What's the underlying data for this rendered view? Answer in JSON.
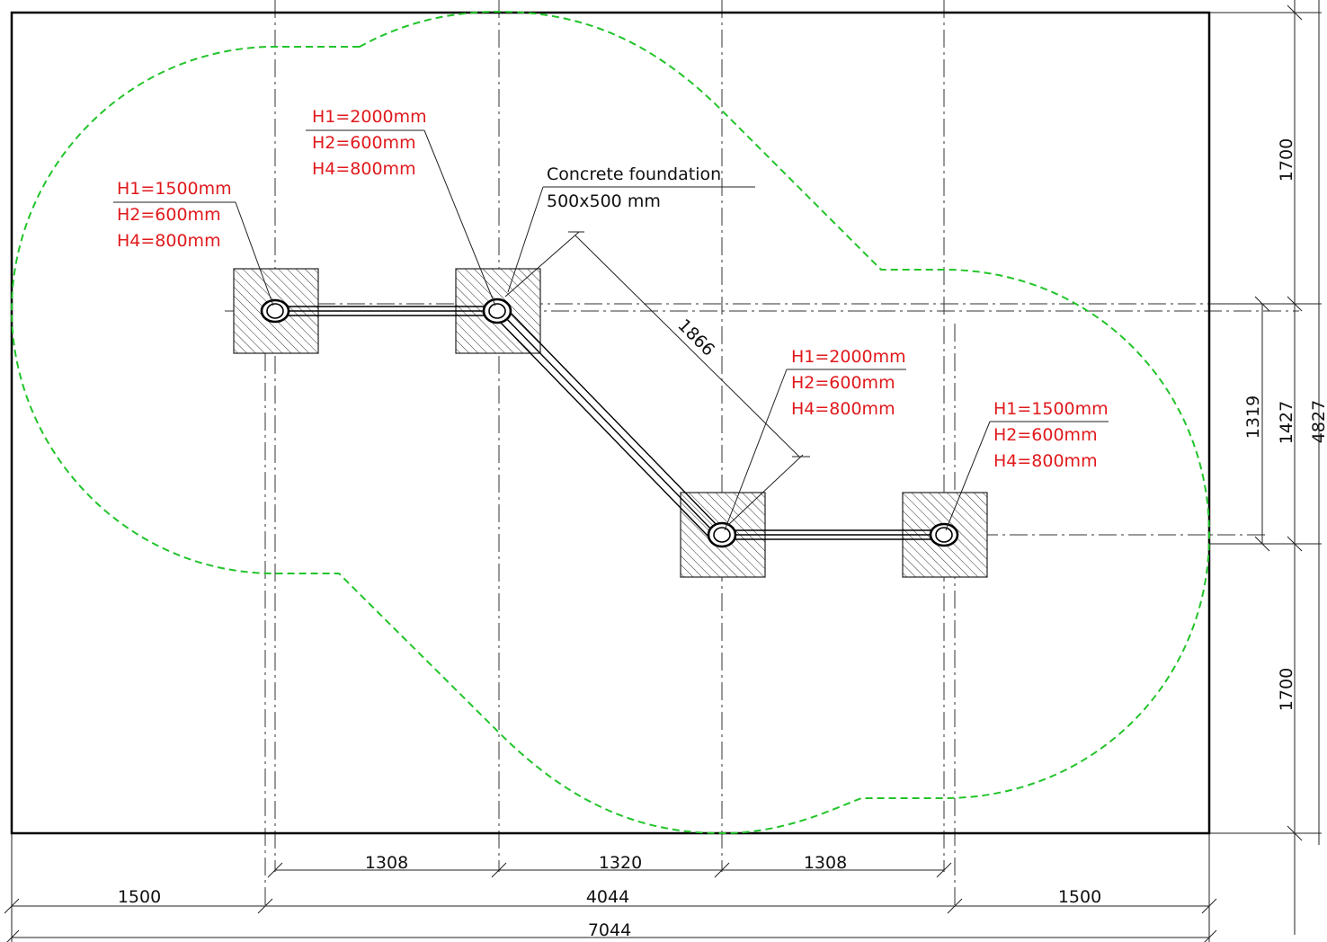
{
  "colors": {
    "border": "#000000",
    "safety_zone": "#22c42a",
    "spec_text": "#e0191c",
    "dimension_text": "#111111",
    "hatch": "#333333"
  },
  "dimensions": {
    "top_height": "1700",
    "bottom_height": "1700",
    "inner_height_a": "1319",
    "inner_height_b": "1427",
    "total_height": "4827",
    "spacing_1": "1308",
    "spacing_2": "1320",
    "spacing_3": "1308",
    "left_margin": "1500",
    "center_span": "4044",
    "right_margin": "1500",
    "total_width": "7044",
    "diagonal": "1866"
  },
  "foundation_note": {
    "line1": "Concrete foundation",
    "line2": "500x500 mm"
  },
  "posts": [
    {
      "h1": "H1=1500mm",
      "h2": "H2=600mm",
      "h4": "H4=800mm"
    },
    {
      "h1": "H1=2000mm",
      "h2": "H2=600mm",
      "h4": "H4=800mm"
    },
    {
      "h1": "H1=2000mm",
      "h2": "H2=600mm",
      "h4": "H4=800mm"
    },
    {
      "h1": "H1=1500mm",
      "h2": "H2=600mm",
      "h4": "H4=800mm"
    }
  ]
}
